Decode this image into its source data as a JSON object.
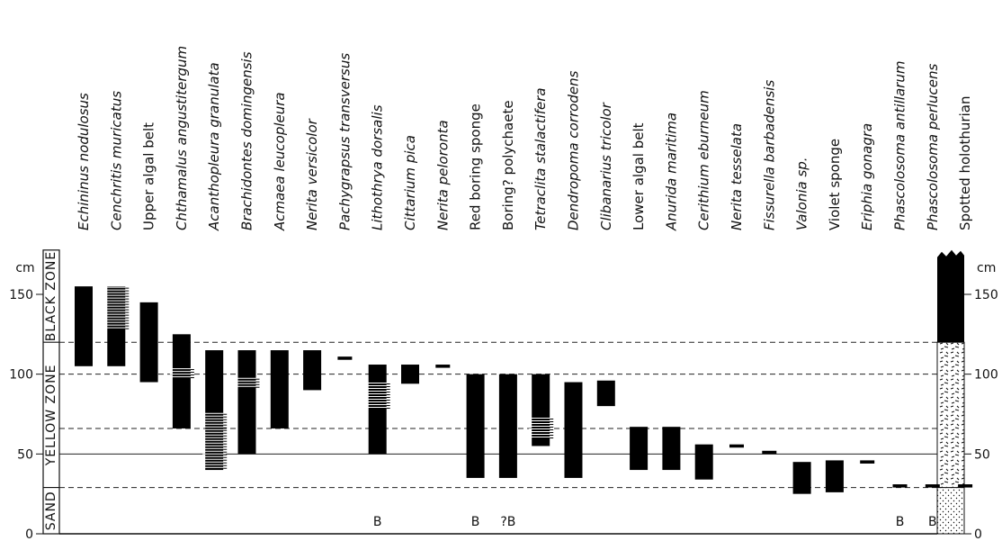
{
  "chart_data": {
    "type": "bar",
    "y_unit": "cm",
    "y_ticks": [
      0,
      50,
      100,
      150
    ],
    "ylim": [
      0,
      180
    ],
    "zones": [
      {
        "label": "SAND",
        "from": 0,
        "to": 29
      },
      {
        "label": "YELLOW ZONE",
        "from": 29,
        "to": 120
      },
      {
        "label": "BLACK ZONE",
        "from": 120,
        "to": 180
      }
    ],
    "dashed_lines": [
      29,
      66,
      100,
      120
    ],
    "solid_lines": [
      50
    ],
    "species": [
      {
        "name": "Echininus nodulosus",
        "italic": true,
        "lo": 105,
        "hi": 155,
        "hatch": null,
        "note": ""
      },
      {
        "name": "Cenchritis muricatus",
        "italic": true,
        "lo": 105,
        "hi": 155,
        "hatch": [
          128,
          155
        ],
        "note": ""
      },
      {
        "name": "Upper algal belt",
        "italic": false,
        "lo": 95,
        "hi": 145,
        "hatch": null,
        "note": ""
      },
      {
        "name": "Chthamalus angustitergum",
        "italic": true,
        "lo": 66,
        "hi": 125,
        "hatch": [
          97,
          104
        ],
        "note": ""
      },
      {
        "name": "Acanthopleura granulata",
        "italic": true,
        "lo": 40,
        "hi": 115,
        "hatch": [
          40,
          76
        ],
        "note": ""
      },
      {
        "name": "Brachidontes domingensis",
        "italic": true,
        "lo": 50,
        "hi": 115,
        "hatch": [
          91,
          98
        ],
        "note": ""
      },
      {
        "name": "Acmaea leucopleura",
        "italic": true,
        "lo": 66,
        "hi": 115,
        "hatch": null,
        "note": ""
      },
      {
        "name": "Nerita versicolor",
        "italic": true,
        "lo": 90,
        "hi": 115,
        "hatch": null,
        "note": ""
      },
      {
        "name": "Pachygrapsus transversus",
        "italic": true,
        "lo": 109,
        "hi": 111,
        "hatch": null,
        "note": ""
      },
      {
        "name": "Lithothrya dorsalis",
        "italic": true,
        "lo": 50,
        "hi": 106,
        "hatch": [
          78,
          95
        ],
        "note": "B"
      },
      {
        "name": "Cittarium pica",
        "italic": true,
        "lo": 94,
        "hi": 106,
        "hatch": null,
        "note": ""
      },
      {
        "name": "Nerita peloronta",
        "italic": true,
        "lo": 104,
        "hi": 106,
        "hatch": null,
        "note": ""
      },
      {
        "name": "Red boring sponge",
        "italic": false,
        "lo": 35,
        "hi": 100,
        "hatch": null,
        "note": "B"
      },
      {
        "name": "Boring? polychaete",
        "italic": false,
        "lo": 35,
        "hi": 100,
        "hatch": null,
        "note": "?B"
      },
      {
        "name": "Tetraclita stalactifera",
        "italic": true,
        "lo": 55,
        "hi": 100,
        "hatch": [
          59,
          73
        ],
        "note": ""
      },
      {
        "name": "Dendropoma corrodens",
        "italic": true,
        "lo": 35,
        "hi": 95,
        "hatch": null,
        "note": ""
      },
      {
        "name": "Clibanarius tricolor",
        "italic": true,
        "lo": 80,
        "hi": 96,
        "hatch": null,
        "note": ""
      },
      {
        "name": "Lower algal belt",
        "italic": false,
        "lo": 40,
        "hi": 67,
        "hatch": null,
        "note": ""
      },
      {
        "name": "Anurida maritima",
        "italic": true,
        "lo": 40,
        "hi": 67,
        "hatch": null,
        "note": ""
      },
      {
        "name": "Cerithium eburneum",
        "italic": true,
        "lo": 34,
        "hi": 56,
        "hatch": null,
        "note": ""
      },
      {
        "name": "Nerita tesselata",
        "italic": true,
        "lo": 54,
        "hi": 56,
        "hatch": null,
        "note": ""
      },
      {
        "name": "Fissurella barbadensis",
        "italic": true,
        "lo": 50,
        "hi": 52,
        "hatch": null,
        "note": ""
      },
      {
        "name": "Valonia sp.",
        "italic": true,
        "lo": 25,
        "hi": 45,
        "hatch": null,
        "note": ""
      },
      {
        "name": "Violet sponge",
        "italic": false,
        "lo": 26,
        "hi": 46,
        "hatch": null,
        "note": ""
      },
      {
        "name": "Eriphia gonagra",
        "italic": true,
        "lo": 44,
        "hi": 46,
        "hatch": null,
        "note": ""
      },
      {
        "name": "Phascolosoma antillarum",
        "italic": true,
        "lo": 29,
        "hi": 31,
        "hatch": null,
        "note": "B"
      },
      {
        "name": "Phascolosoma perlucens",
        "italic": true,
        "lo": 29,
        "hi": 31,
        "hatch": null,
        "note": "B"
      },
      {
        "name": "Spotted holothurian",
        "italic": false,
        "lo": 29,
        "hi": 31,
        "hatch": null,
        "note": ""
      }
    ]
  }
}
